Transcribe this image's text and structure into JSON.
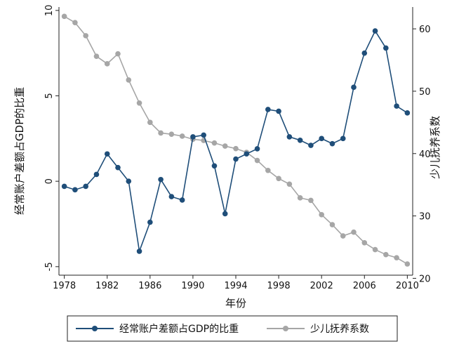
{
  "chart_data": {
    "type": "line",
    "xlabel": "年份",
    "ylabel_left": "经常账户差额占GDP的比重",
    "ylabel_right": "少儿抚养系数",
    "x_ticks": [
      1978,
      1982,
      1986,
      1990,
      1994,
      1998,
      2002,
      2006,
      2010
    ],
    "xlim": [
      1977.5,
      2010.5
    ],
    "y_left_ticks": [
      10,
      5,
      0,
      -5
    ],
    "y_left_lim": [
      -5.5,
      10.2
    ],
    "y_right_ticks": [
      60,
      50,
      40,
      30,
      20
    ],
    "y_right_lim": [
      20.5,
      63.5
    ],
    "grid": false,
    "legend_position": "bottom",
    "series": [
      {
        "name": "经常账户差额占GDP的比重",
        "axis": "left",
        "color": "#1f4e79",
        "x": [
          1978,
          1979,
          1980,
          1981,
          1982,
          1983,
          1984,
          1985,
          1986,
          1987,
          1988,
          1989,
          1990,
          1991,
          1992,
          1993,
          1994,
          1995,
          1996,
          1997,
          1998,
          1999,
          2000,
          2001,
          2002,
          2003,
          2004,
          2005,
          2006,
          2007,
          2008,
          2009,
          2010
        ],
        "values": [
          -0.3,
          -0.5,
          -0.3,
          0.4,
          1.6,
          0.8,
          0.0,
          -4.1,
          -2.4,
          0.1,
          -0.9,
          -1.1,
          2.6,
          2.7,
          0.9,
          -1.9,
          1.3,
          1.6,
          1.9,
          4.2,
          4.1,
          2.6,
          2.4,
          2.1,
          2.5,
          2.2,
          2.5,
          5.5,
          7.5,
          8.8,
          7.8,
          4.4,
          4.0
        ]
      },
      {
        "name": "少儿抚养系数",
        "axis": "right",
        "color": "#a6a6a6",
        "x": [
          1978,
          1979,
          1980,
          1981,
          1982,
          1983,
          1984,
          1985,
          1986,
          1987,
          1988,
          1989,
          1990,
          1991,
          1992,
          1993,
          1994,
          1995,
          1996,
          1997,
          1998,
          1999,
          2000,
          2001,
          2002,
          2003,
          2004,
          2005,
          2006,
          2007,
          2008,
          2009,
          2010
        ],
        "values": [
          62.0,
          61.0,
          58.9,
          55.6,
          54.4,
          56.0,
          51.8,
          48.1,
          45.0,
          43.3,
          43.1,
          42.8,
          42.3,
          42.1,
          41.7,
          41.2,
          40.8,
          40.2,
          38.9,
          37.3,
          36.0,
          35.1,
          32.9,
          32.5,
          30.2,
          28.6,
          26.8,
          27.4,
          25.7,
          24.6,
          23.8,
          23.3,
          22.3
        ]
      }
    ]
  }
}
